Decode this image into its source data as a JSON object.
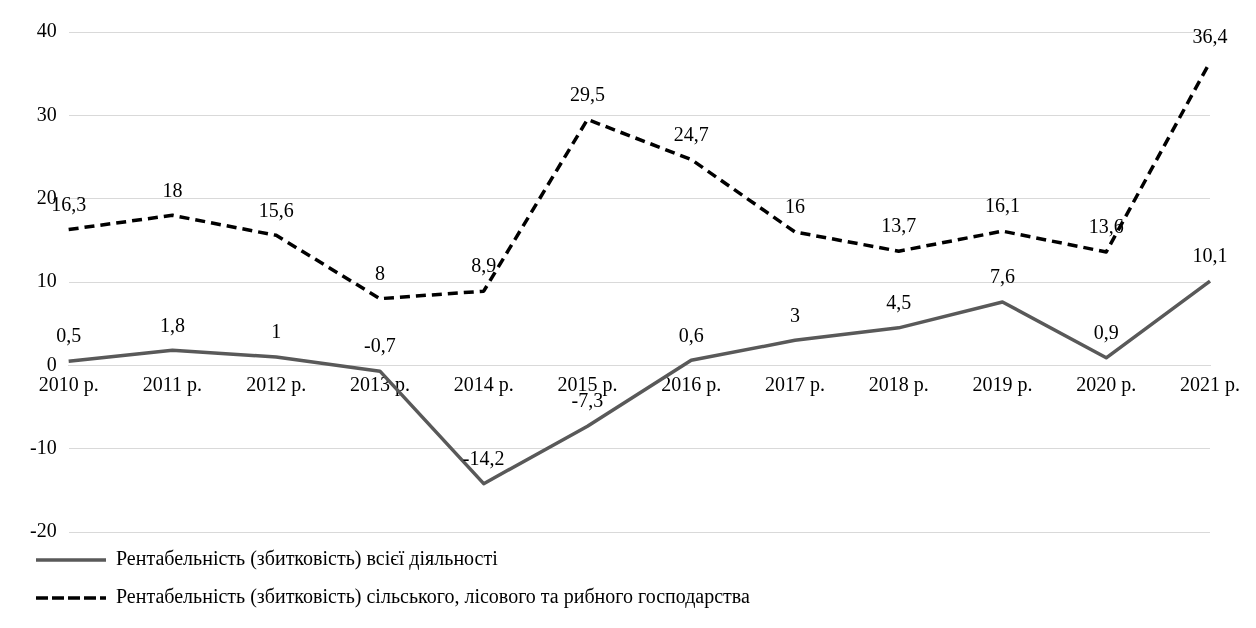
{
  "chart_data": {
    "type": "line",
    "categories": [
      "2010 р.",
      "2011 р.",
      "2012 р.",
      "2013 р.",
      "2014 р.",
      "2015 р.",
      "2016 р.",
      "2017 р.",
      "2018 р.",
      "2019 р.",
      "2020 р.",
      "2021 р."
    ],
    "series": [
      {
        "name": "Рентабельність (збитковість) всієї діяльності",
        "color": "#595959",
        "line_style": "solid",
        "values": [
          0.5,
          1.8,
          1,
          -0.7,
          -14.2,
          -7.3,
          0.6,
          3,
          4.5,
          7.6,
          0.9,
          10.1
        ],
        "value_labels": [
          "0,5",
          "1,8",
          "1",
          "-0,7",
          "-14,2",
          "-7,3",
          "0,6",
          "3",
          "4,5",
          "7,6",
          "0,9",
          "10,1"
        ]
      },
      {
        "name": "Рентабельність (збитковість) сільського, лісового та рибного господарства",
        "color": "#000000",
        "line_style": "dashed",
        "values": [
          16.3,
          18,
          15.6,
          8,
          8.9,
          29.5,
          24.7,
          16,
          13.7,
          16.1,
          13.6,
          36.4
        ],
        "value_labels": [
          "16,3",
          "18",
          "15,6",
          "8",
          "8,9",
          "29,5",
          "24,7",
          "16",
          "13,7",
          "16,1",
          "13,6",
          "36,4"
        ]
      }
    ],
    "ylim": [
      -20,
      40
    ],
    "yticks": [
      -20,
      -10,
      0,
      10,
      20,
      30,
      40
    ],
    "grid": "y",
    "legend": "bottom",
    "marker": "none"
  }
}
